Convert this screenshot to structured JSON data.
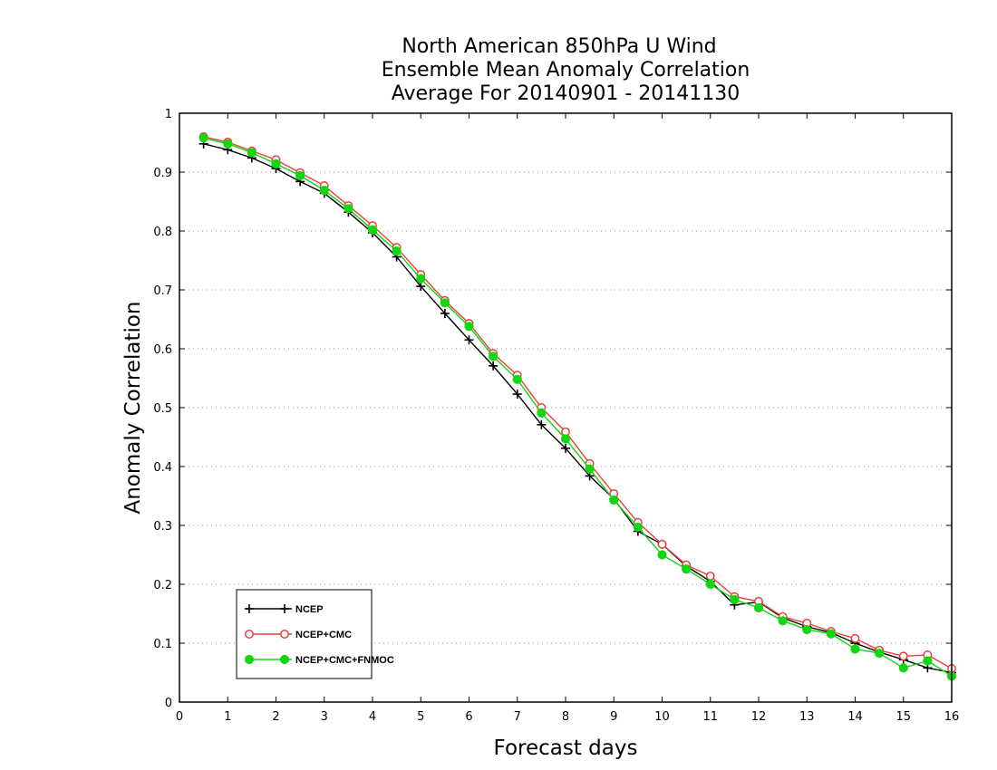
{
  "chart_data": {
    "type": "line",
    "title": [
      "North American 850hPa U Wind",
      "Ensemble Mean Anomaly Correlation",
      "Average For 20140901 - 20141130"
    ],
    "xlabel": "Forecast days",
    "ylabel": "Anomaly Correlation",
    "xlim": [
      0,
      16
    ],
    "ylim": [
      0,
      1
    ],
    "xticks": [
      "0",
      "1",
      "2",
      "3",
      "4",
      "5",
      "6",
      "7",
      "8",
      "9",
      "10",
      "11",
      "12",
      "13",
      "14",
      "15",
      "16"
    ],
    "yticks": [
      "0",
      "0.1",
      "0.2",
      "0.3",
      "0.4",
      "0.5",
      "0.6",
      "0.7",
      "0.8",
      "0.9",
      "1"
    ],
    "grid": "horizontal-dotted",
    "legend_position": "bottom-left",
    "x": [
      0.5,
      1,
      1.5,
      2,
      2.5,
      3,
      3.5,
      4,
      4.5,
      5,
      5.5,
      6,
      6.5,
      7,
      7.5,
      8,
      8.5,
      9,
      9.5,
      10,
      10.5,
      11,
      11.5,
      12,
      12.5,
      13,
      13.5,
      14,
      14.5,
      15,
      15.5,
      16
    ],
    "series": [
      {
        "name": "NCEP",
        "color": "#000000",
        "marker": "plus",
        "values": [
          0.948,
          0.938,
          0.924,
          0.906,
          0.884,
          0.864,
          0.832,
          0.797,
          0.756,
          0.706,
          0.66,
          0.615,
          0.571,
          0.523,
          0.471,
          0.431,
          0.384,
          0.345,
          0.29,
          0.268,
          0.231,
          0.205,
          0.165,
          0.17,
          0.143,
          0.128,
          0.118,
          0.1,
          0.085,
          0.072,
          0.058,
          0.05
        ]
      },
      {
        "name": "NCEP+CMC",
        "color": "#e8413c",
        "marker": "open-circle",
        "values": [
          0.96,
          0.951,
          0.936,
          0.921,
          0.899,
          0.877,
          0.843,
          0.809,
          0.772,
          0.726,
          0.682,
          0.643,
          0.592,
          0.555,
          0.5,
          0.459,
          0.405,
          0.354,
          0.305,
          0.268,
          0.233,
          0.214,
          0.179,
          0.171,
          0.145,
          0.134,
          0.12,
          0.108,
          0.088,
          0.078,
          0.08,
          0.057
        ]
      },
      {
        "name": "NCEP+CMC+FNMOC",
        "color": "#12d612",
        "marker": "filled-circle",
        "values": [
          0.958,
          0.948,
          0.933,
          0.914,
          0.894,
          0.869,
          0.838,
          0.802,
          0.766,
          0.719,
          0.678,
          0.638,
          0.587,
          0.548,
          0.491,
          0.447,
          0.396,
          0.343,
          0.297,
          0.25,
          0.226,
          0.2,
          0.174,
          0.16,
          0.138,
          0.123,
          0.116,
          0.09,
          0.083,
          0.058,
          0.07,
          0.044
        ]
      }
    ]
  }
}
